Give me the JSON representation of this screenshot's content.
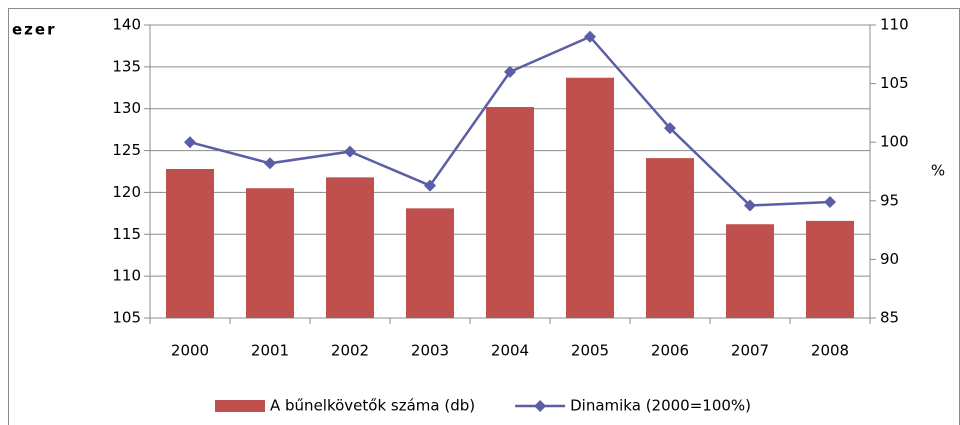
{
  "chart_data": {
    "type": "bar_line",
    "y_label": "ezer",
    "y2_label": "%",
    "categories": [
      "2000",
      "2001",
      "2002",
      "2003",
      "2004",
      "2005",
      "2006",
      "2007",
      "2008"
    ],
    "series": [
      {
        "name": "A bűnelkövetők száma (db)",
        "type": "bar",
        "color": "#c0504d",
        "axis": "y",
        "values": [
          122.8,
          120.5,
          121.8,
          118.1,
          130.2,
          133.7,
          124.1,
          116.2,
          116.6
        ]
      },
      {
        "name": "Dinamika (2000=100%)",
        "type": "line",
        "color": "#5b5ea6",
        "axis": "y2",
        "values": [
          100,
          98.2,
          99.2,
          96.3,
          106,
          109,
          101.2,
          94.6,
          94.9
        ]
      }
    ],
    "ylim": [
      105,
      140
    ],
    "yticks": [
      105,
      110,
      115,
      120,
      125,
      130,
      135,
      140
    ],
    "y2lim": [
      85,
      110
    ],
    "y2ticks": [
      85,
      90,
      95,
      100,
      105,
      110
    ],
    "grid": true,
    "legend": "bottom"
  }
}
